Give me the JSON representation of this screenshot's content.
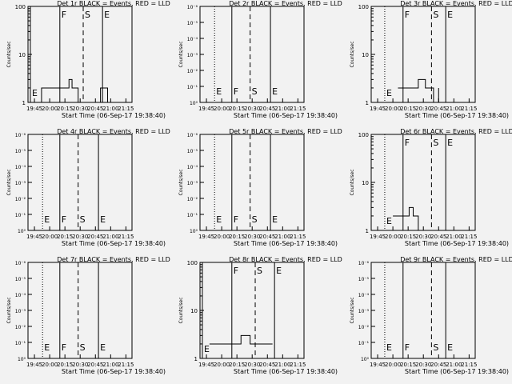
{
  "window": {
    "background": "#f2f2f2"
  },
  "style": {
    "events_color": "#000000",
    "lld_color": "#ff0000"
  },
  "common": {
    "xlabel": "Start Time (06-Sep-17 19:38:40)",
    "xticks": [
      "19:45",
      "20:00",
      "20:15",
      "20:30",
      "20:45",
      "21:00",
      "21:15"
    ],
    "marker_letters": [
      "E",
      "F",
      "S",
      "E"
    ]
  },
  "chart_data": [
    {
      "type": "line",
      "title": "Det 1r BLACK = Events, RED = LLD",
      "ylabel": "Counts/sec",
      "yscale": "log",
      "yticks": [
        "1",
        "10",
        "100"
      ],
      "ylim": [
        1,
        100
      ],
      "x_range": [
        "19:38:40",
        "21:21:00"
      ],
      "vlines": [
        {
          "x": "19:41:00",
          "style": "solid",
          "label": "E"
        },
        {
          "x": "20:10:00",
          "style": "solid",
          "label": "F"
        },
        {
          "x": "20:33:00",
          "style": "dashed",
          "label": "S"
        },
        {
          "x": "20:52:00",
          "style": "solid",
          "label": "E"
        }
      ],
      "events": [
        {
          "x": "19:51:00",
          "y": 1
        },
        {
          "x": "19:52:00",
          "y": 2
        },
        {
          "x": "20:01:00",
          "y": 2
        },
        {
          "x": "20:15:00",
          "y": 2
        },
        {
          "x": "20:19:00",
          "y": 3
        },
        {
          "x": "20:22:00",
          "y": 2
        },
        {
          "x": "20:28:00",
          "y": 1
        },
        {
          "x": "20:50:00",
          "y": 2
        },
        {
          "x": "20:56:00",
          "y": 2
        },
        {
          "x": "20:57:00",
          "y": 1
        }
      ]
    },
    {
      "type": "line",
      "title": "Det 2r BLACK = Events, RED = LLD",
      "ylabel": "Counts/sec",
      "yscale": "log",
      "yticks": [
        "10⁰",
        "10⁻¹",
        "10⁻²",
        "10⁻³",
        "10⁻⁴",
        "10⁻⁵",
        "10⁻⁶"
      ],
      "x_range": [
        "19:38:40",
        "21:21:00"
      ],
      "vlines": [
        {
          "x": "19:53:00",
          "style": "dotted",
          "label": "E"
        },
        {
          "x": "20:10:00",
          "style": "solid",
          "label": "F"
        },
        {
          "x": "20:28:00",
          "style": "dashed",
          "label": "S"
        },
        {
          "x": "20:48:00",
          "style": "solid",
          "label": "E"
        }
      ],
      "events": []
    },
    {
      "type": "line",
      "title": "Det 3r BLACK = Events, RED = LLD",
      "ylabel": "Counts/sec",
      "yscale": "log",
      "yticks": [
        "1",
        "10",
        "100"
      ],
      "ylim": [
        1,
        100
      ],
      "x_range": [
        "19:38:40",
        "21:21:00"
      ],
      "vlines": [
        {
          "x": "19:52:00",
          "style": "dotted",
          "label": "E"
        },
        {
          "x": "20:10:00",
          "style": "solid",
          "label": "F"
        },
        {
          "x": "20:38:00",
          "style": "dashed",
          "label": "S"
        },
        {
          "x": "20:52:00",
          "style": "solid",
          "label": "E"
        }
      ],
      "events": [
        {
          "x": "20:05:00",
          "y": 2
        },
        {
          "x": "20:17:00",
          "y": 2
        },
        {
          "x": "20:25:00",
          "y": 3
        },
        {
          "x": "20:32:00",
          "y": 2
        },
        {
          "x": "20:40:00",
          "y": 1
        },
        {
          "x": "20:45:00",
          "y": 2
        }
      ]
    },
    {
      "type": "line",
      "title": "Det 4r BLACK = Events, RED = LLD",
      "ylabel": "Counts/sec",
      "yscale": "log",
      "yticks": [
        "10⁰",
        "10⁻¹",
        "10⁻²",
        "10⁻³",
        "10⁻⁴",
        "10⁻⁵",
        "10⁻⁶"
      ],
      "x_range": [
        "19:38:40",
        "21:21:00"
      ],
      "vlines": [
        {
          "x": "19:53:00",
          "style": "dotted",
          "label": "E"
        },
        {
          "x": "20:10:00",
          "style": "solid",
          "label": "F"
        },
        {
          "x": "20:28:00",
          "style": "dashed",
          "label": "S"
        },
        {
          "x": "20:48:00",
          "style": "solid",
          "label": "E"
        }
      ],
      "events": []
    },
    {
      "type": "line",
      "title": "Det 5r BLACK = Events, RED = LLD",
      "ylabel": "Counts/sec",
      "yscale": "log",
      "yticks": [
        "10⁰",
        "10⁻¹",
        "10⁻²",
        "10⁻³",
        "10⁻⁴",
        "10⁻⁵",
        "10⁻⁶"
      ],
      "x_range": [
        "19:38:40",
        "21:21:00"
      ],
      "vlines": [
        {
          "x": "19:53:00",
          "style": "dotted",
          "label": "E"
        },
        {
          "x": "20:10:00",
          "style": "solid",
          "label": "F"
        },
        {
          "x": "20:28:00",
          "style": "dashed",
          "label": "S"
        },
        {
          "x": "20:48:00",
          "style": "solid",
          "label": "E"
        }
      ],
      "events": []
    },
    {
      "type": "line",
      "title": "Det 6r BLACK = Events, RED = LLD",
      "ylabel": "Counts/sec",
      "yscale": "log",
      "yticks": [
        "1",
        "10",
        "100"
      ],
      "ylim": [
        1,
        100
      ],
      "x_range": [
        "19:38:40",
        "21:21:00"
      ],
      "vlines": [
        {
          "x": "19:52:00",
          "style": "dotted",
          "label": "E"
        },
        {
          "x": "20:10:00",
          "style": "solid",
          "label": "F"
        },
        {
          "x": "20:38:00",
          "style": "dashed",
          "label": "S"
        },
        {
          "x": "20:52:00",
          "style": "solid",
          "label": "E"
        }
      ],
      "events": [
        {
          "x": "20:00:00",
          "y": 2
        },
        {
          "x": "20:10:00",
          "y": 2
        },
        {
          "x": "20:16:00",
          "y": 3
        },
        {
          "x": "20:20:00",
          "y": 2
        },
        {
          "x": "20:25:00",
          "y": 1
        }
      ]
    },
    {
      "type": "line",
      "title": "Det 7r BLACK = Events, RED = LLD",
      "ylabel": "Counts/sec",
      "yscale": "log",
      "yticks": [
        "10⁰",
        "10⁻¹",
        "10⁻²",
        "10⁻³",
        "10⁻⁴",
        "10⁻⁵",
        "10⁻⁶"
      ],
      "x_range": [
        "19:38:40",
        "21:21:00"
      ],
      "vlines": [
        {
          "x": "19:53:00",
          "style": "dotted",
          "label": "E"
        },
        {
          "x": "20:10:00",
          "style": "solid",
          "label": "F"
        },
        {
          "x": "20:28:00",
          "style": "dashed",
          "label": "S"
        },
        {
          "x": "20:48:00",
          "style": "solid",
          "label": "E"
        }
      ],
      "events": []
    },
    {
      "type": "line",
      "title": "Det 8r BLACK = Events, RED = LLD",
      "ylabel": "Counts/sec",
      "yscale": "log",
      "yticks": [
        "1",
        "10",
        "100"
      ],
      "ylim": [
        1,
        100
      ],
      "x_range": [
        "19:38:40",
        "21:21:00"
      ],
      "vlines": [
        {
          "x": "19:41:00",
          "style": "solid",
          "label": "E"
        },
        {
          "x": "20:10:00",
          "style": "solid",
          "label": "F"
        },
        {
          "x": "20:33:00",
          "style": "dashed",
          "label": "S"
        },
        {
          "x": "20:52:00",
          "style": "solid",
          "label": "E"
        }
      ],
      "events": [
        {
          "x": "19:48:00",
          "y": 2
        },
        {
          "x": "20:00:00",
          "y": 2
        },
        {
          "x": "20:14:00",
          "y": 2
        },
        {
          "x": "20:19:00",
          "y": 3
        },
        {
          "x": "20:28:00",
          "y": 2
        },
        {
          "x": "20:50:00",
          "y": 2
        }
      ]
    },
    {
      "type": "line",
      "title": "Det 9r BLACK = Events, RED = LLD",
      "ylabel": "Counts/sec",
      "yscale": "log",
      "yticks": [
        "10⁰",
        "10⁻¹",
        "10⁻²",
        "10⁻³",
        "10⁻⁴",
        "10⁻⁵",
        "10⁻⁶"
      ],
      "x_range": [
        "19:38:40",
        "21:21:00"
      ],
      "vlines": [
        {
          "x": "19:52:00",
          "style": "dotted",
          "label": "E"
        },
        {
          "x": "20:10:00",
          "style": "solid",
          "label": "F"
        },
        {
          "x": "20:38:00",
          "style": "dashed",
          "label": "S"
        },
        {
          "x": "20:52:00",
          "style": "solid",
          "label": "E"
        }
      ],
      "events": []
    }
  ]
}
